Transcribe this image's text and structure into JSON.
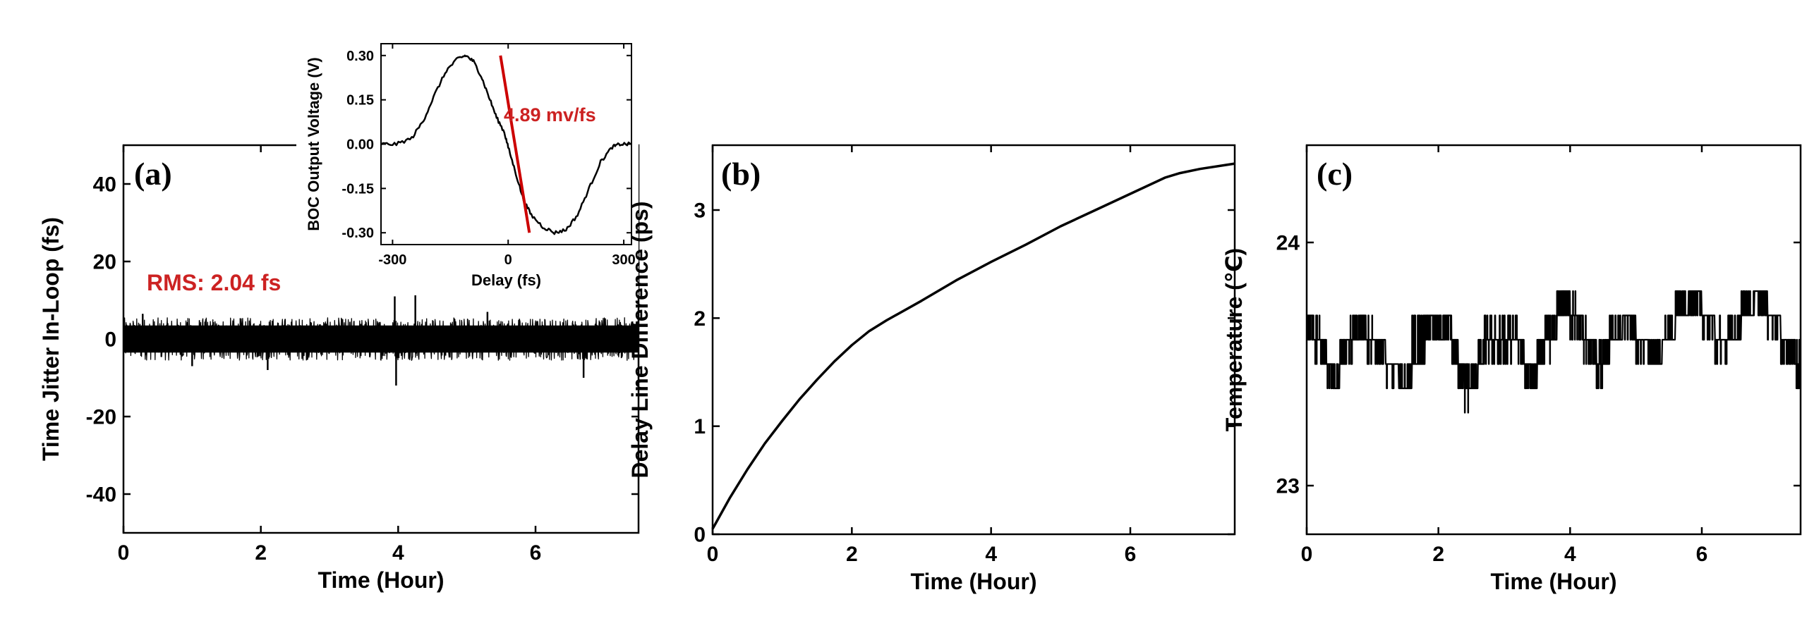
{
  "colors": {
    "trace": "#000000",
    "fit_line": "#cc0000",
    "annotation": "#cc2222"
  },
  "chart_data": [
    {
      "panel": "(a)",
      "type": "line",
      "xlabel": "Time (Hour)",
      "ylabel": "Time Jitter In-Loop (fs)",
      "xlim": [
        0,
        7.5
      ],
      "ylim": [
        -50,
        50
      ],
      "xticks": [
        0,
        2,
        4,
        6
      ],
      "yticks": [
        -40,
        -20,
        0,
        20,
        40
      ],
      "annotation": "RMS: 2.04 fs",
      "noise": {
        "band": [
          -5.5,
          5.5
        ],
        "spikes": [
          {
            "x": 0.28,
            "y": 6.5
          },
          {
            "x": 2.1,
            "y": -8
          },
          {
            "x": 3.95,
            "y": 11
          },
          {
            "x": 3.97,
            "y": -12
          },
          {
            "x": 4.25,
            "y": 12
          },
          {
            "x": 5.3,
            "y": 7
          },
          {
            "x": 6.7,
            "y": -10
          },
          {
            "x": 1.0,
            "y": -7
          }
        ]
      },
      "inset": {
        "type": "line",
        "xlabel": "Delay (fs)",
        "ylabel": "BOC Output Voltage (V)",
        "xlim": [
          -330,
          320
        ],
        "ylim": [
          -0.34,
          0.34
        ],
        "xticks": [
          -300,
          0,
          300
        ],
        "yticks": [
          -0.3,
          -0.15,
          0.0,
          0.15,
          0.3
        ],
        "ytick_labels": [
          "-0.30",
          "-0.15",
          "0.00",
          "0.15",
          "0.30"
        ],
        "annotation": "4.89 mv/fs",
        "series": {
          "x": [
            -330,
            -290,
            -250,
            -220,
            -190,
            -160,
            -130,
            -110,
            -90,
            -70,
            -50,
            -30,
            -10,
            0,
            20,
            40,
            60,
            90,
            120,
            150,
            180,
            210,
            240,
            270,
            290,
            320
          ],
          "y": [
            0.0,
            0.0,
            0.02,
            0.08,
            0.17,
            0.25,
            0.29,
            0.3,
            0.28,
            0.23,
            0.16,
            0.09,
            0.04,
            -0.01,
            -0.1,
            -0.19,
            -0.24,
            -0.28,
            -0.3,
            -0.29,
            -0.24,
            -0.15,
            -0.06,
            -0.01,
            0.0,
            0.0
          ]
        },
        "fit_line": {
          "x": [
            -20,
            55
          ],
          "y": [
            0.3,
            -0.3
          ]
        }
      }
    },
    {
      "panel": "(b)",
      "type": "line",
      "xlabel": "Time (Hour)",
      "ylabel": "Delay Line Difference (ps)",
      "xlim": [
        0,
        7.5
      ],
      "ylim": [
        0,
        3.6
      ],
      "xticks": [
        0,
        2,
        4,
        6
      ],
      "yticks": [
        0,
        1,
        2,
        3
      ],
      "series": {
        "x": [
          0,
          0.25,
          0.5,
          0.75,
          1.0,
          1.25,
          1.5,
          1.75,
          2.0,
          2.25,
          2.5,
          3.0,
          3.5,
          4.0,
          4.5,
          5.0,
          5.5,
          6.0,
          6.5,
          6.7,
          7.0,
          7.5
        ],
        "y": [
          0.05,
          0.34,
          0.6,
          0.84,
          1.05,
          1.25,
          1.43,
          1.6,
          1.75,
          1.88,
          1.98,
          2.16,
          2.35,
          2.52,
          2.68,
          2.85,
          3.0,
          3.15,
          3.3,
          3.34,
          3.38,
          3.43
        ]
      }
    },
    {
      "panel": "(c)",
      "type": "line",
      "xlabel": "Time (Hour)",
      "ylabel": "Temperature (℃)",
      "xlim": [
        0,
        7.5
      ],
      "ylim": [
        22.8,
        24.4
      ],
      "xticks": [
        0,
        2,
        4,
        6
      ],
      "yticks": [
        23,
        24
      ],
      "series": {
        "x": [
          0.0,
          0.1,
          0.2,
          0.3,
          0.4,
          0.5,
          0.6,
          0.7,
          0.8,
          0.9,
          1.0,
          1.2,
          1.4,
          1.6,
          1.8,
          2.0,
          2.1,
          2.2,
          2.3,
          2.4,
          2.5,
          2.6,
          2.7,
          2.8,
          3.0,
          3.2,
          3.3,
          3.4,
          3.5,
          3.6,
          3.7,
          3.8,
          3.9,
          4.0,
          4.1,
          4.2,
          4.3,
          4.4,
          4.5,
          4.6,
          4.8,
          5.0,
          5.2,
          5.4,
          5.6,
          5.8,
          6.0,
          6.2,
          6.4,
          6.6,
          6.8,
          7.0,
          7.2,
          7.4,
          7.5
        ],
        "y": [
          23.7,
          23.6,
          23.6,
          23.5,
          23.4,
          23.5,
          23.6,
          23.6,
          23.7,
          23.6,
          23.6,
          23.5,
          23.4,
          23.5,
          23.7,
          23.6,
          23.7,
          23.6,
          23.5,
          23.4,
          23.4,
          23.5,
          23.6,
          23.6,
          23.6,
          23.6,
          23.5,
          23.4,
          23.5,
          23.6,
          23.6,
          23.7,
          23.8,
          23.7,
          23.7,
          23.6,
          23.6,
          23.5,
          23.5,
          23.6,
          23.7,
          23.6,
          23.5,
          23.6,
          23.7,
          23.8,
          23.7,
          23.6,
          23.6,
          23.7,
          23.8,
          23.7,
          23.6,
          23.5,
          23.5
        ]
      }
    }
  ]
}
